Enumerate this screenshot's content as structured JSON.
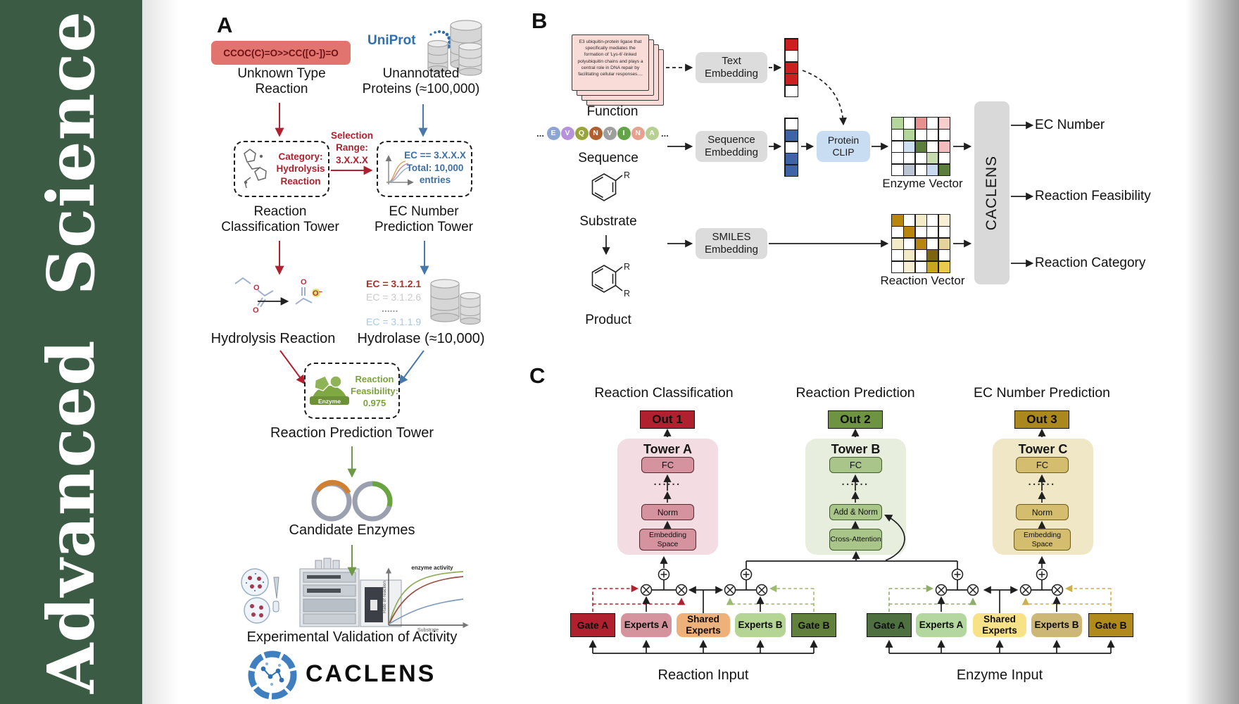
{
  "sidebar": {
    "journal": "Advanced Science"
  },
  "panelA": {
    "label": "A",
    "smiles": "CCOC(C)=O>>CC([O-])=O",
    "unknown_caption": "Unknown Type Reaction",
    "uniprot": "UniProt",
    "unannotated_caption": "Unannotated Proteins (≈100,000)",
    "selection_lines": [
      "Selection",
      "Range:",
      "3.X.X.X"
    ],
    "category_lines": [
      "Category:",
      "Hydrolysis",
      "Reaction"
    ],
    "ec_range_lines": [
      "EC == 3.X.X.X",
      "Total: 10,000",
      "entries"
    ],
    "classification_tower_caption": "Reaction Classification Tower",
    "ec_tower_caption": "EC Number Prediction Tower",
    "ec_list": [
      {
        "text": "EC = 3.1.2.1",
        "color": "#a8322c"
      },
      {
        "text": "EC = 3.1.2.6",
        "color": "#c9c9c9"
      },
      {
        "text": "......",
        "color": "#9a9a9a"
      },
      {
        "text": "EC = 3.1.1.9",
        "color": "#a9c9e4"
      }
    ],
    "hydrolysis_caption": "Hydrolysis Reaction",
    "hydrolase_caption": "Hydrolase (≈10,000)",
    "enzyme_badge": "Enzyme",
    "feasibility_lines": [
      "Reaction",
      "Feasibility:",
      "0.975"
    ],
    "prediction_tower_caption": "Reaction Prediction Tower",
    "candidates_caption": "Candidate Enzymes",
    "plot": {
      "ylabel": "Rate of reaction",
      "xlabel": "Substrate",
      "annotation": "enzyme activity"
    },
    "validation_caption": "Experimental Validation of Activity",
    "logo": "CACLENS"
  },
  "panelB": {
    "label": "B",
    "function_card": "E3 ubiquitin-protein ligase that specifically mediates the formation of 'Lys-6'-linked polyubiquitin chains and plays a central role in DNA repair by facilitating cellular responses....",
    "function_caption": "Function",
    "ellipsis": "...",
    "sequence": [
      {
        "letter": "E",
        "color": "#8ca6cf"
      },
      {
        "letter": "V",
        "color": "#b691dc"
      },
      {
        "letter": "Q",
        "color": "#9aa43c"
      },
      {
        "letter": "N",
        "color": "#b15f2f"
      },
      {
        "letter": "V",
        "color": "#9e9e9e"
      },
      {
        "letter": "I",
        "color": "#64a348"
      },
      {
        "letter": "N",
        "color": "#e9a18f"
      },
      {
        "letter": "A",
        "color": "#b7cf92"
      }
    ],
    "sequence_caption": "Sequence",
    "substrate_caption": "Substrate",
    "product_caption": "Product",
    "r_label": "R",
    "text_embedding": "Text Embedding",
    "sequence_embedding": "Sequence Embedding",
    "smiles_embedding": "SMILES Embedding",
    "protein_clip": "Protein CLIP",
    "text_vector_cells": [
      "#cc1f1f",
      "#ffffff",
      "#cc1f1f",
      "#cc1f1f",
      "#ffffff"
    ],
    "seq_vector_cells": [
      "#ffffff",
      "#3f64a6",
      "#ffffff",
      "#3f64a6",
      "#3f64a6"
    ],
    "enzyme_vector_cells": [
      "#b5d69b",
      "#ffffff",
      "#e89090",
      "#ffffff",
      "#f6cdcd",
      "#ffffff",
      "#b5d69b",
      "#ffffff",
      "#ffffff",
      "#ffffff",
      "#ffffff",
      "#cfdff2",
      "#5c7e3c",
      "#ffffff",
      "#f2bcbc",
      "#ffffff",
      "#ffffff",
      "#ffffff",
      "#c6dcae",
      "#ffffff",
      "#ffffff",
      "#bcc5d2",
      "#ffffff",
      "#c9daf0",
      "#5c7e3c"
    ],
    "reaction_vector_cells": [
      "#b8860f",
      "#ffffff",
      "#f3ebc8",
      "#ffffff",
      "#f6efd4",
      "#ffffff",
      "#b8860f",
      "#ffffff",
      "#ffffff",
      "#ffffff",
      "#f3ebc8",
      "#ffffff",
      "#b8860f",
      "#ffffff",
      "#e3d49e",
      "#ffffff",
      "#f3ebc8",
      "#ffffff",
      "#7c6410",
      "#ffffff",
      "#ffffff",
      "#f6efd4",
      "#ffffff",
      "#caa41f",
      "#e9c94e"
    ],
    "enzyme_vector_label": "Enzyme Vector",
    "reaction_vector_label": "Reaction Vector",
    "caclens_bar": "CACLENS",
    "outputs": [
      "EC Number",
      "Reaction Feasibility",
      "Reaction Category"
    ]
  },
  "panelC": {
    "label": "C",
    "headings": [
      "Reaction Classification",
      "Reaction Prediction",
      "EC Number Prediction"
    ],
    "outs": [
      "Out 1",
      "Out 2",
      "Out 3"
    ],
    "tower_titles": [
      "Tower A",
      "Tower B",
      "Tower C"
    ],
    "dots": "······",
    "towerA_blocks": {
      "fc": "FC",
      "norm": "Norm",
      "embedding": "Embedding Space"
    },
    "towerB_blocks": {
      "fc": "FC",
      "add_norm": "Add & Norm",
      "cross_attention": "Cross-Attention"
    },
    "towerC_blocks": {
      "fc": "FC",
      "norm": "Norm",
      "embedding": "Embedding Space"
    },
    "reaction_group": {
      "gate_a": "Gate A",
      "experts_a": "Experts A",
      "shared": "Shared Experts",
      "experts_b": "Experts B",
      "gate_b": "Gate B",
      "caption": "Reaction Input"
    },
    "enzyme_group": {
      "gate_a": "Gate A",
      "experts_a": "Experts A",
      "shared": "Shared Experts",
      "experts_b": "Experts B",
      "gate_b": "Gate B",
      "caption": "Enzyme Input"
    }
  }
}
